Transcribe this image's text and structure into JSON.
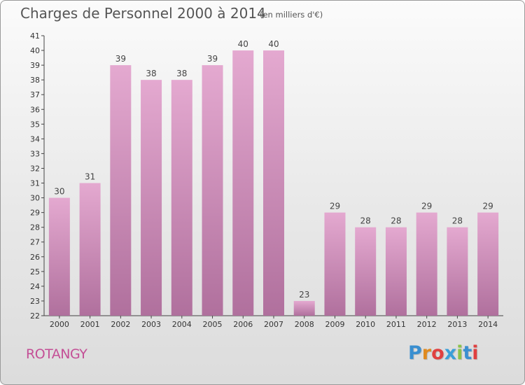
{
  "title": "Charges de Personnel 2000 à 2014",
  "subtitle": "(en milliers d'€)",
  "place": "ROTANGY",
  "logo": {
    "letters": [
      "P",
      "r",
      "o",
      "x",
      "i",
      "t",
      "i"
    ],
    "colors": [
      "#3a8fd0",
      "#e08a1f",
      "#e04040",
      "#3a9fd8",
      "#8bc34a",
      "#3a8fd0",
      "#e04040"
    ]
  },
  "colors": {
    "bar_top": "#e4a9d0",
    "bar_bottom": "#b0709d",
    "accent": "#c44f96"
  },
  "chart_data": {
    "type": "bar",
    "title": "Charges de Personnel 2000 à 2014",
    "subtitle": "(en milliers d'€)",
    "categories": [
      "2000",
      "2001",
      "2002",
      "2003",
      "2004",
      "2005",
      "2006",
      "2007",
      "2008",
      "2009",
      "2010",
      "2011",
      "2012",
      "2013",
      "2014"
    ],
    "values": [
      30,
      31,
      39,
      38,
      38,
      39,
      40,
      40,
      23,
      29,
      28,
      28,
      29,
      28,
      29
    ],
    "ylim": [
      22,
      41
    ],
    "yticks": [
      22,
      23,
      24,
      25,
      26,
      27,
      28,
      29,
      30,
      31,
      32,
      33,
      34,
      35,
      36,
      37,
      38,
      39,
      40,
      41
    ],
    "grid": false,
    "legend": "none"
  }
}
